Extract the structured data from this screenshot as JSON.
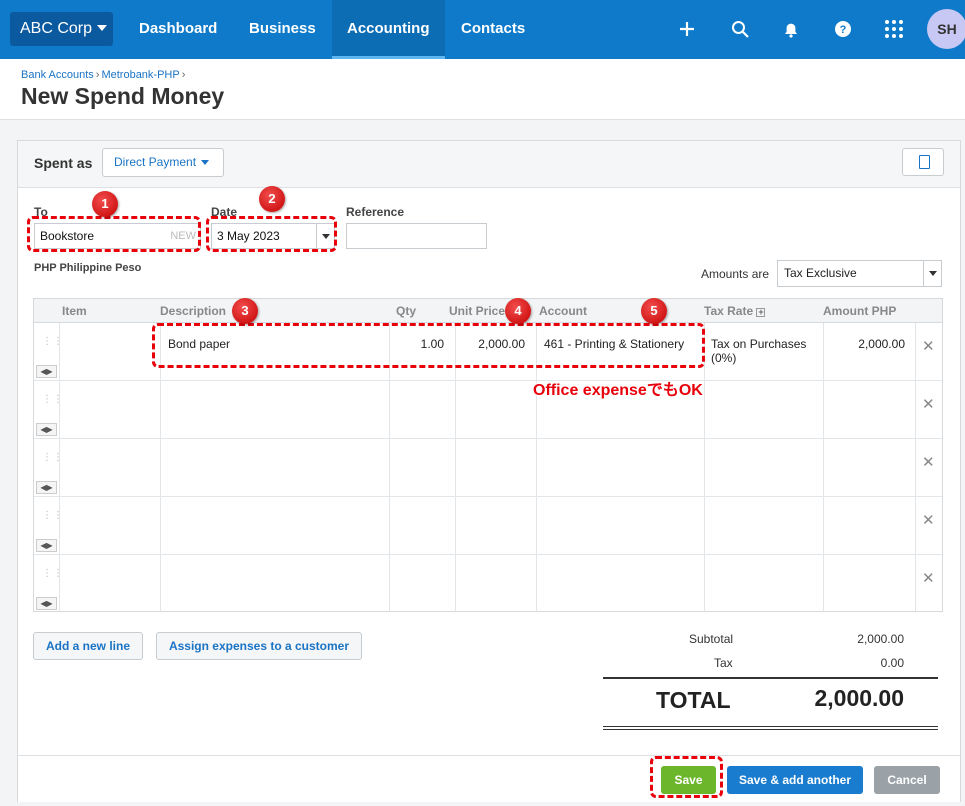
{
  "nav": {
    "org": "ABC Corp",
    "items": [
      "Dashboard",
      "Business",
      "Accounting",
      "Contacts"
    ],
    "active": "Accounting",
    "avatar": "SH"
  },
  "header": {
    "crumbs": [
      "Bank Accounts",
      "Metrobank-PHP"
    ],
    "title": "New Spend Money"
  },
  "form": {
    "spent_as_label": "Spent as",
    "spent_as_value": "Direct Payment",
    "to_label": "To",
    "to_value": "Bookstore",
    "to_new_tag": "NEW",
    "date_label": "Date",
    "date_value": "3 May 2023",
    "reference_label": "Reference",
    "reference_value": "",
    "currency": "PHP Philippine Peso",
    "amounts_are_label": "Amounts are",
    "amounts_are_value": "Tax Exclusive"
  },
  "table": {
    "headers": {
      "item": "Item",
      "description": "Description",
      "qty": "Qty",
      "unit_price": "Unit Price",
      "account": "Account",
      "tax_rate": "Tax Rate",
      "amount": "Amount PHP"
    },
    "rows": [
      {
        "item": "",
        "description": "Bond paper",
        "qty": "1.00",
        "unit_price": "2,000.00",
        "account": "461 - Printing & Stationery",
        "tax_rate_line1": "Tax on Purchases",
        "tax_rate_line2": "(0%)",
        "amount": "2,000.00"
      }
    ]
  },
  "buttons": {
    "add_line": "Add a new line",
    "assign": "Assign expenses to a customer",
    "save": "Save",
    "save_add": "Save & add another",
    "cancel": "Cancel"
  },
  "totals": {
    "subtotal_label": "Subtotal",
    "subtotal_value": "2,000.00",
    "tax_label": "Tax",
    "tax_value": "0.00",
    "total_label": "TOTAL",
    "total_value": "2,000.00"
  },
  "annotations": {
    "badges": [
      "1",
      "2",
      "3",
      "4",
      "5"
    ],
    "note": "Office expenseでもOK",
    "color": "#e8000b"
  }
}
